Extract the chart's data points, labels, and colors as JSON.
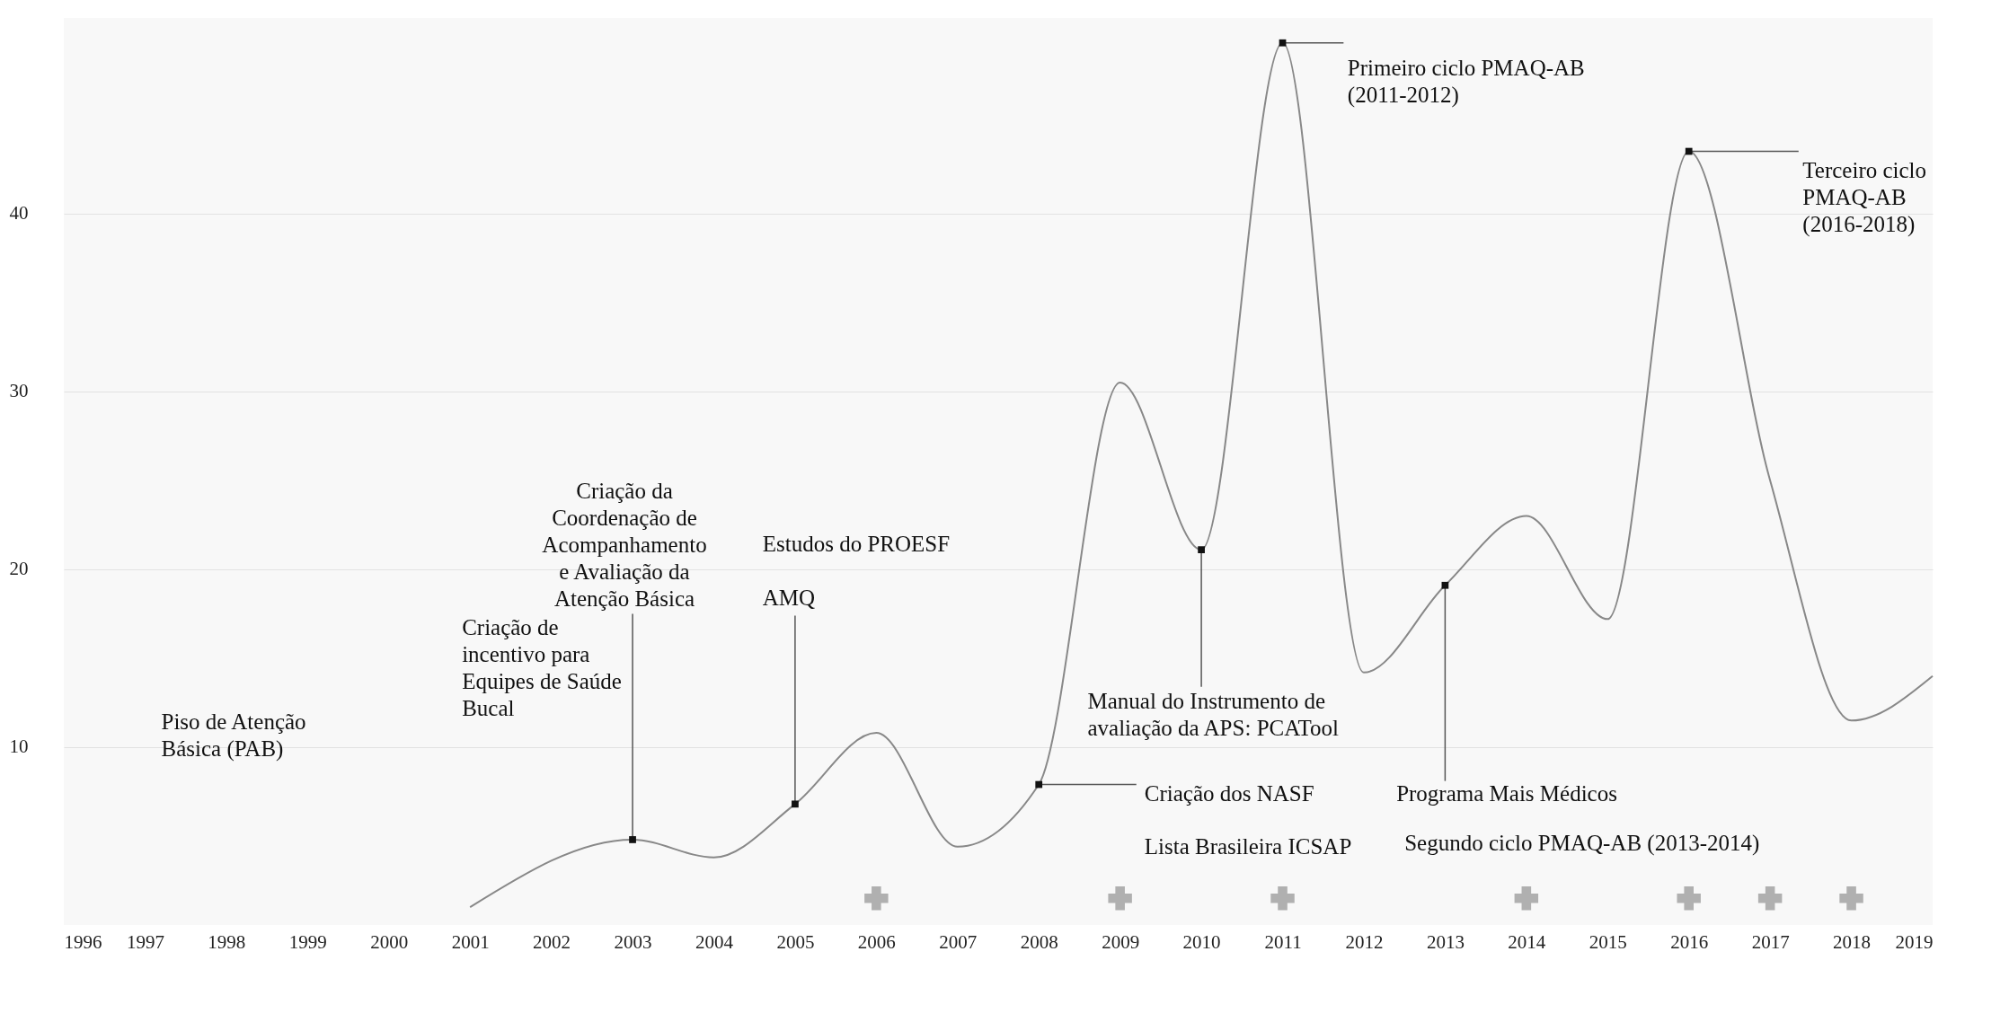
{
  "chart_data": {
    "type": "line",
    "x": [
      2001,
      2003,
      2004,
      2005,
      2006,
      2007,
      2008,
      2009,
      2010,
      2011,
      2012,
      2013,
      2014,
      2015,
      2016,
      2017,
      2018,
      2019
    ],
    "series": [
      {
        "color": "#888888",
        "values": [
          1,
          4.8,
          3.8,
          6.8,
          10.8,
          4.4,
          7.9,
          30.5,
          21.1,
          49.6,
          14.2,
          19.1,
          23,
          17.2,
          43.5,
          25,
          11.5,
          14
        ]
      },
      {
        "type": "scatter",
        "marker": "cross",
        "color": "#b0b0b0",
        "x": [
          2006,
          2009,
          2011,
          2014,
          2016,
          2017,
          2018
        ],
        "values": [
          1.5,
          1.5,
          1.5,
          1.5,
          1.5,
          1.5,
          1.5
        ]
      }
    ],
    "xlim": [
      1996,
      2019
    ],
    "xticks": [
      1996,
      1997,
      1998,
      1999,
      2000,
      2001,
      2002,
      2003,
      2004,
      2005,
      2006,
      2007,
      2008,
      2009,
      2010,
      2011,
      2012,
      2013,
      2014,
      2015,
      2016,
      2017,
      2018,
      2019
    ],
    "ylim": [
      0,
      51
    ],
    "yticks": [
      10,
      20,
      30,
      40
    ],
    "grid": "y",
    "annotations": [
      "Piso de Atenção\nBásica (PAB)",
      "Criação de\nincentivo para\nEquipes de Saúde\nBucal",
      {
        "text": "Criação  da\nCoordenação de\nAcompanhamento\ne Avaliação da\nAtenção Básica",
        "x": 2003,
        "y": 4.8
      },
      "Estudos do PROESF",
      {
        "text": "AMQ",
        "x": 2005,
        "y": 6.8
      },
      {
        "text": "Manual do Instrumento de\navaliação da APS: PCATool",
        "x": 2010,
        "y": 21.1
      },
      {
        "text": "Criação dos NASF",
        "x": 2008,
        "y": 7.9
      },
      "Lista Brasileira ICSAP",
      {
        "text": "Primeiro ciclo PMAQ-AB\n(2011-2012)",
        "x": 2011,
        "y": 49.6
      },
      {
        "text": "Programa Mais Médicos",
        "x": 2013,
        "y": 19.1
      },
      "Segundo ciclo PMAQ-AB (2013-2014)",
      {
        "text": "Terceiro ciclo\nPMAQ-AB\n(2016-2018)",
        "x": 2016,
        "y": 43.5
      }
    ]
  }
}
